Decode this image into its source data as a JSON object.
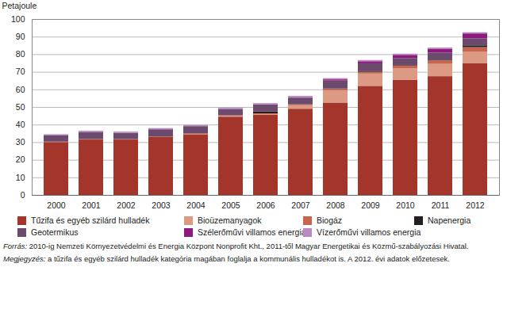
{
  "chart_data": {
    "type": "bar",
    "stacked": true,
    "grid": true,
    "y_label": "Petajoule",
    "categories": [
      "2000",
      "2001",
      "2002",
      "2003",
      "2004",
      "2005",
      "2006",
      "2007",
      "2008",
      "2009",
      "2010",
      "2011",
      "2012"
    ],
    "ylim": [
      0,
      100
    ],
    "yticks": [
      0,
      10,
      20,
      30,
      40,
      50,
      60,
      70,
      80,
      90,
      100
    ],
    "series": [
      {
        "name": "Tűzifa és egyéb szilárd hulladék",
        "color": "#a3352a",
        "values": [
          30,
          31.5,
          31.5,
          33,
          34.5,
          44.5,
          45.5,
          49,
          52.5,
          62,
          65.5,
          67.5,
          75
        ]
      },
      {
        "name": "Bioüzemanyagok",
        "color": "#dc9a84",
        "values": [
          0,
          0,
          0,
          0,
          0.2,
          0.5,
          0.5,
          2,
          7,
          7,
          6.5,
          7,
          6.5
        ]
      },
      {
        "name": "Biogáz",
        "color": "#c8654c",
        "values": [
          0.2,
          0.2,
          0.2,
          0.2,
          0.3,
          0.3,
          0.4,
          0.5,
          0.8,
          1,
          1.5,
          2,
          2.5
        ]
      },
      {
        "name": "Napenergia",
        "color": "#231f20",
        "values": [
          0.1,
          0.1,
          0.1,
          0.1,
          0.1,
          0.1,
          1,
          0.2,
          0.2,
          0.3,
          0.3,
          0.4,
          1
        ]
      },
      {
        "name": "Geotermikus",
        "color": "#6b4a6e",
        "values": [
          3.5,
          4,
          3.5,
          4,
          4,
          3.5,
          4,
          3.5,
          4.5,
          4.5,
          4,
          4,
          4
        ]
      },
      {
        "name": "Szélerőművi villamos energia",
        "color": "#8c1b7d",
        "values": [
          0,
          0,
          0,
          0,
          0,
          0,
          0.1,
          0.4,
          0.7,
          1.2,
          1.8,
          2.2,
          2.8
        ]
      },
      {
        "name": "Vízerőművi villamos energia",
        "color": "#b98ac4",
        "values": [
          0.7,
          0.7,
          0.7,
          0.7,
          0.7,
          0.7,
          0.7,
          0.7,
          0.7,
          0.7,
          0.7,
          0.7,
          0.7
        ]
      }
    ],
    "source_label": "Forrás:",
    "source": "2010-ig Nemzeti Környezetvédelmi és Energia Központ Nonprofit Kht., 2011-től Magyar Energetikai és Közmű-szabályozási Hivatal.",
    "note_label": "Megjegyzés:",
    "note": "a tűzifa és egyéb szilárd hulladék kategória magában foglalja a kommunális hulladékot is. A 2012. évi adatok előzetesek."
  }
}
